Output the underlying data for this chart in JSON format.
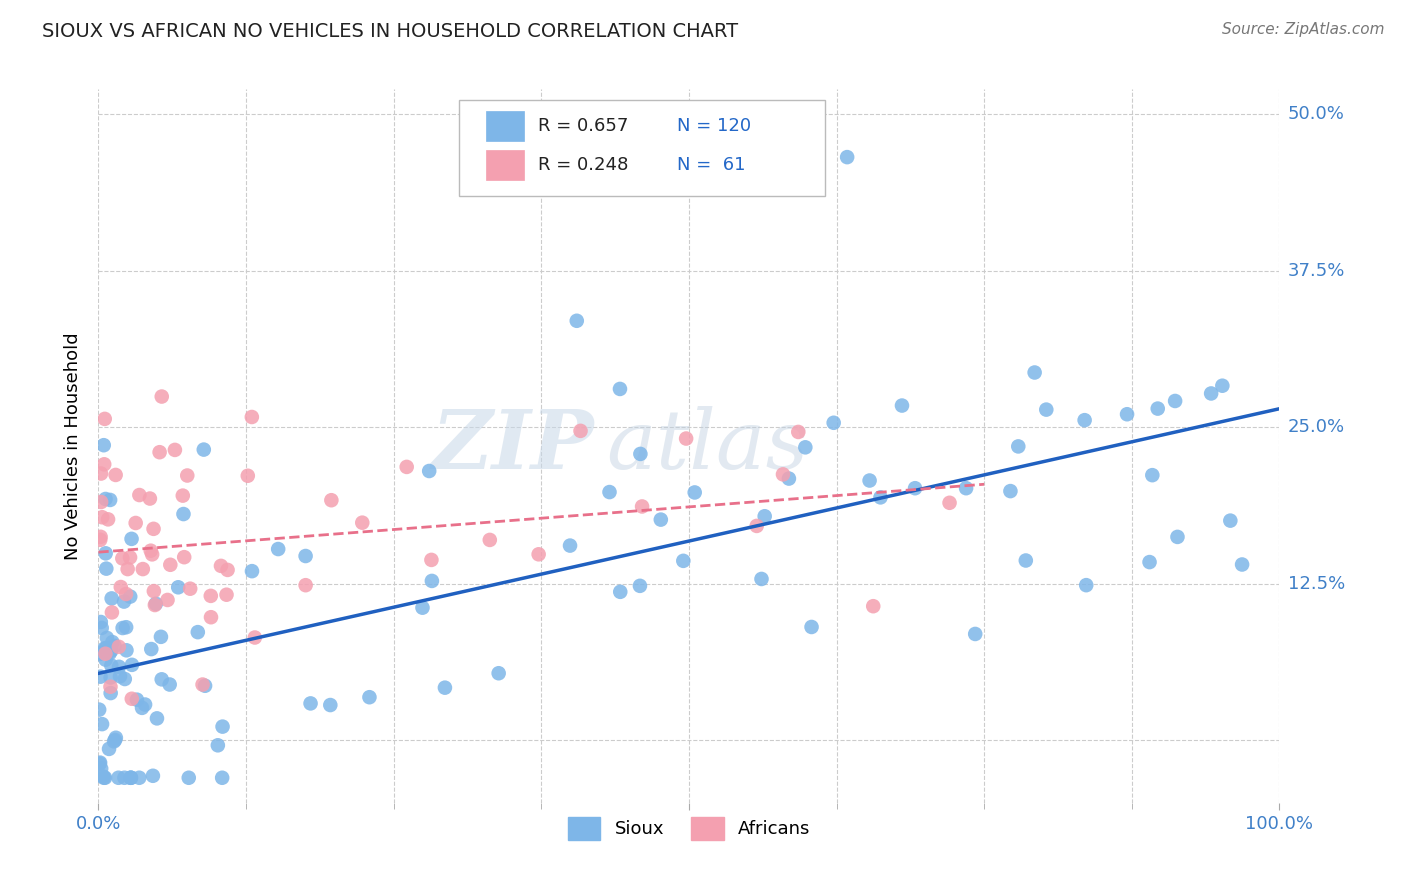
{
  "title": "SIOUX VS AFRICAN NO VEHICLES IN HOUSEHOLD CORRELATION CHART",
  "source": "Source: ZipAtlas.com",
  "ylabel": "No Vehicles in Household",
  "xlim": [
    0,
    100
  ],
  "ylim": [
    -5,
    52
  ],
  "yticks": [
    0,
    12.5,
    25.0,
    37.5,
    50.0
  ],
  "ytick_labels": [
    "",
    "12.5%",
    "25.0%",
    "37.5%",
    "50.0%"
  ],
  "xticks": [
    0,
    12.5,
    25,
    37.5,
    50,
    62.5,
    75,
    87.5,
    100
  ],
  "sioux_color": "#7EB6E8",
  "african_color": "#F4A0B0",
  "sioux_line_color": "#2060C0",
  "african_line_color": "#E8708A",
  "background_color": "#ffffff",
  "grid_color": "#cccccc",
  "title_color": "#222222",
  "source_color": "#777777",
  "tick_color": "#4080C8",
  "legend_text_color": "#222222",
  "legend_value_color": "#2468C8"
}
